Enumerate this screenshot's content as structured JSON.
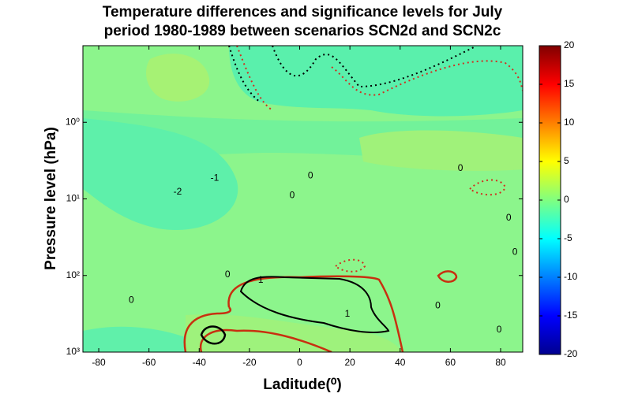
{
  "chart_data": {
    "type": "contour",
    "title": [
      "Temperature differences and significance levels for July",
      "period 1980-1989  between scenarios SCN2d and SCN2c"
    ],
    "xlabel": "Laditude(⁰)",
    "ylabel": "Pressure level (hPa)",
    "xlim": [
      -86.3,
      88.8
    ],
    "xticks": [
      -80,
      -60,
      -40,
      -20,
      0,
      20,
      40,
      60,
      80
    ],
    "ylim": [
      1000,
      0.1
    ],
    "yscale": "log",
    "yticks": [
      {
        "value": 1,
        "label": "10⁰"
      },
      {
        "value": 10,
        "label": "10¹"
      },
      {
        "value": 100,
        "label": "10²"
      },
      {
        "value": 1000,
        "label": "10³"
      }
    ],
    "clim": [
      -20,
      20
    ],
    "cticks": [
      -20,
      -15,
      -10,
      -5,
      0,
      5,
      10,
      15,
      20
    ],
    "annotations": [
      {
        "text": "-2",
        "x": -48.6,
        "y": 8.1
      },
      {
        "text": "-1",
        "x": -33.8,
        "y": 5.4
      },
      {
        "text": "0",
        "x": 4.3,
        "y": 5
      },
      {
        "text": "0",
        "x": -3,
        "y": 9.1
      },
      {
        "text": "0",
        "x": 64,
        "y": 4
      },
      {
        "text": "0",
        "x": 83.2,
        "y": 17.7
      },
      {
        "text": "0",
        "x": 85.7,
        "y": 50
      },
      {
        "text": "0",
        "x": -28.7,
        "y": 98
      },
      {
        "text": "1",
        "x": -15.5,
        "y": 115
      },
      {
        "text": "1",
        "x": 19,
        "y": 320
      },
      {
        "text": "0",
        "x": -67,
        "y": 210
      },
      {
        "text": "0",
        "x": 55,
        "y": 250
      },
      {
        "text": "0",
        "x": 79.4,
        "y": 515
      }
    ]
  }
}
